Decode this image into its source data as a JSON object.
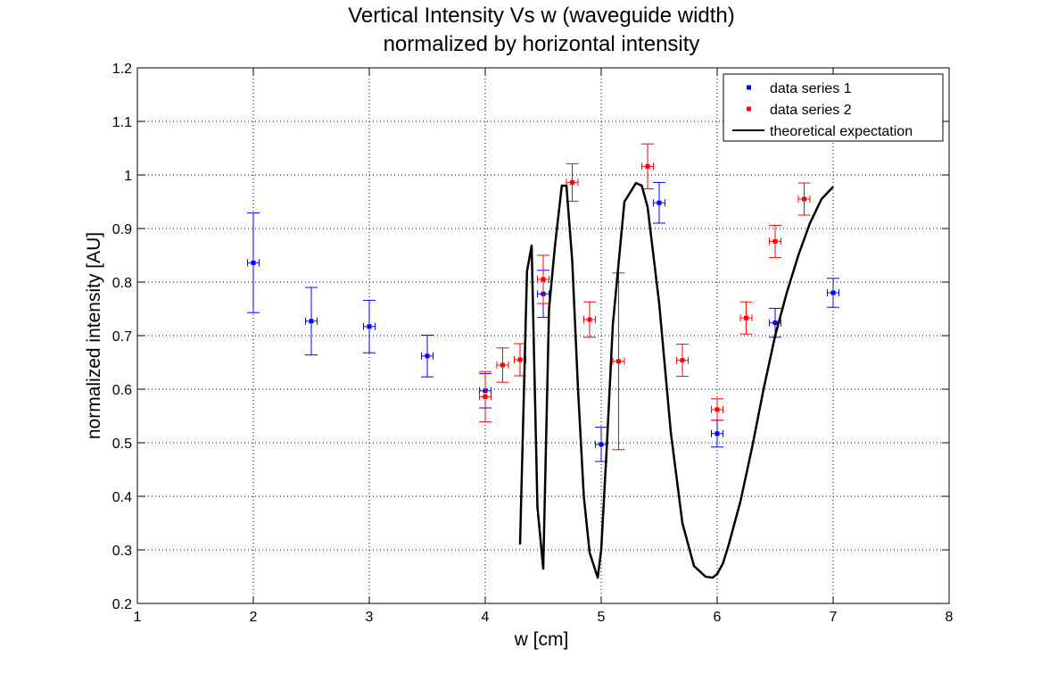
{
  "chart_data": {
    "type": "scatter",
    "title": [
      "Vertical Intensity Vs w (waveguide width)",
      "normalized by horizontal intensity"
    ],
    "xlabel": "w [cm]",
    "ylabel": "normalized intensity [AU]",
    "xlim": [
      1,
      8
    ],
    "ylim": [
      0.2,
      1.2
    ],
    "xticks": [
      1,
      2,
      3,
      4,
      5,
      6,
      7,
      8
    ],
    "yticks": [
      0.2,
      0.3,
      0.4,
      0.5,
      0.6,
      0.7,
      0.8,
      0.9,
      1,
      1.1,
      1.2
    ],
    "xtick_labels": [
      "1",
      "2",
      "3",
      "4",
      "5",
      "6",
      "7",
      "8"
    ],
    "ytick_labels": [
      "0.2",
      "0.3",
      "0.4",
      "0.5",
      "0.6",
      "0.7",
      "0.8",
      "0.9",
      "1",
      "1.1",
      "1.2"
    ],
    "grid": true,
    "legend_position": "top-right",
    "series": [
      {
        "name": "data series 1",
        "color": "#0000ff",
        "points": [
          {
            "x": 2.0,
            "y": 0.836,
            "yerr": 0.093,
            "xerr": 0.05
          },
          {
            "x": 2.5,
            "y": 0.727,
            "yerr": 0.063,
            "xerr": 0.05
          },
          {
            "x": 3.0,
            "y": 0.717,
            "yerr": 0.049,
            "xerr": 0.05
          },
          {
            "x": 3.5,
            "y": 0.662,
            "yerr": 0.039,
            "xerr": 0.05
          },
          {
            "x": 4.0,
            "y": 0.597,
            "yerr": 0.032,
            "xerr": 0.05
          },
          {
            "x": 4.5,
            "y": 0.778,
            "yerr": 0.044,
            "xerr": 0.05
          },
          {
            "x": 5.0,
            "y": 0.497,
            "yerr": 0.032,
            "xerr": 0.05
          },
          {
            "x": 5.5,
            "y": 0.948,
            "yerr": 0.038,
            "xerr": 0.05
          },
          {
            "x": 6.0,
            "y": 0.517,
            "yerr": 0.025,
            "xerr": 0.05
          },
          {
            "x": 6.5,
            "y": 0.724,
            "yerr": 0.027,
            "xerr": 0.05
          },
          {
            "x": 7.0,
            "y": 0.78,
            "yerr": 0.027,
            "xerr": 0.05
          }
        ]
      },
      {
        "name": "data series 2",
        "color": "#ff0000",
        "points": [
          {
            "x": 4.0,
            "y": 0.586,
            "yerr": 0.047,
            "xerr": 0.05
          },
          {
            "x": 4.15,
            "y": 0.645,
            "yerr": 0.032,
            "xerr": 0.05
          },
          {
            "x": 4.3,
            "y": 0.655,
            "yerr": 0.03,
            "xerr": 0.05
          },
          {
            "x": 4.5,
            "y": 0.805,
            "yerr": 0.045,
            "xerr": 0.05
          },
          {
            "x": 4.75,
            "y": 0.986,
            "yerr": 0.035,
            "xerr": 0.05
          },
          {
            "x": 4.9,
            "y": 0.73,
            "yerr": 0.033,
            "xerr": 0.05
          },
          {
            "x": 5.15,
            "y": 0.652,
            "yerr": 0.165,
            "xerr": 0.05
          },
          {
            "x": 5.4,
            "y": 1.016,
            "yerr": 0.042,
            "xerr": 0.05
          },
          {
            "x": 5.7,
            "y": 0.654,
            "yerr": 0.03,
            "xerr": 0.05
          },
          {
            "x": 6.0,
            "y": 0.562,
            "yerr": 0.02,
            "xerr": 0.05
          },
          {
            "x": 6.25,
            "y": 0.733,
            "yerr": 0.03,
            "xerr": 0.05
          },
          {
            "x": 6.5,
            "y": 0.876,
            "yerr": 0.03,
            "xerr": 0.05
          },
          {
            "x": 6.75,
            "y": 0.955,
            "yerr": 0.03,
            "xerr": 0.05
          }
        ]
      },
      {
        "name": "theoretical expectation",
        "color": "#000000",
        "type": "line",
        "x": [
          4.3,
          4.36,
          4.4,
          4.45,
          4.5,
          4.55,
          4.6,
          4.66,
          4.7,
          4.75,
          4.8,
          4.85,
          4.9,
          4.97,
          5.0,
          5.05,
          5.1,
          5.2,
          5.3,
          5.35,
          5.4,
          5.5,
          5.6,
          5.7,
          5.8,
          5.9,
          5.96,
          6.0,
          6.05,
          6.1,
          6.2,
          6.3,
          6.4,
          6.5,
          6.6,
          6.7,
          6.8,
          6.9,
          7.0
        ],
        "y": [
          0.31,
          0.82,
          0.868,
          0.38,
          0.265,
          0.75,
          0.865,
          0.98,
          0.98,
          0.84,
          0.6,
          0.4,
          0.295,
          0.248,
          0.3,
          0.5,
          0.72,
          0.95,
          0.985,
          0.98,
          0.94,
          0.76,
          0.52,
          0.35,
          0.27,
          0.25,
          0.248,
          0.255,
          0.275,
          0.31,
          0.39,
          0.49,
          0.6,
          0.7,
          0.78,
          0.85,
          0.91,
          0.955,
          0.978
        ]
      }
    ]
  }
}
